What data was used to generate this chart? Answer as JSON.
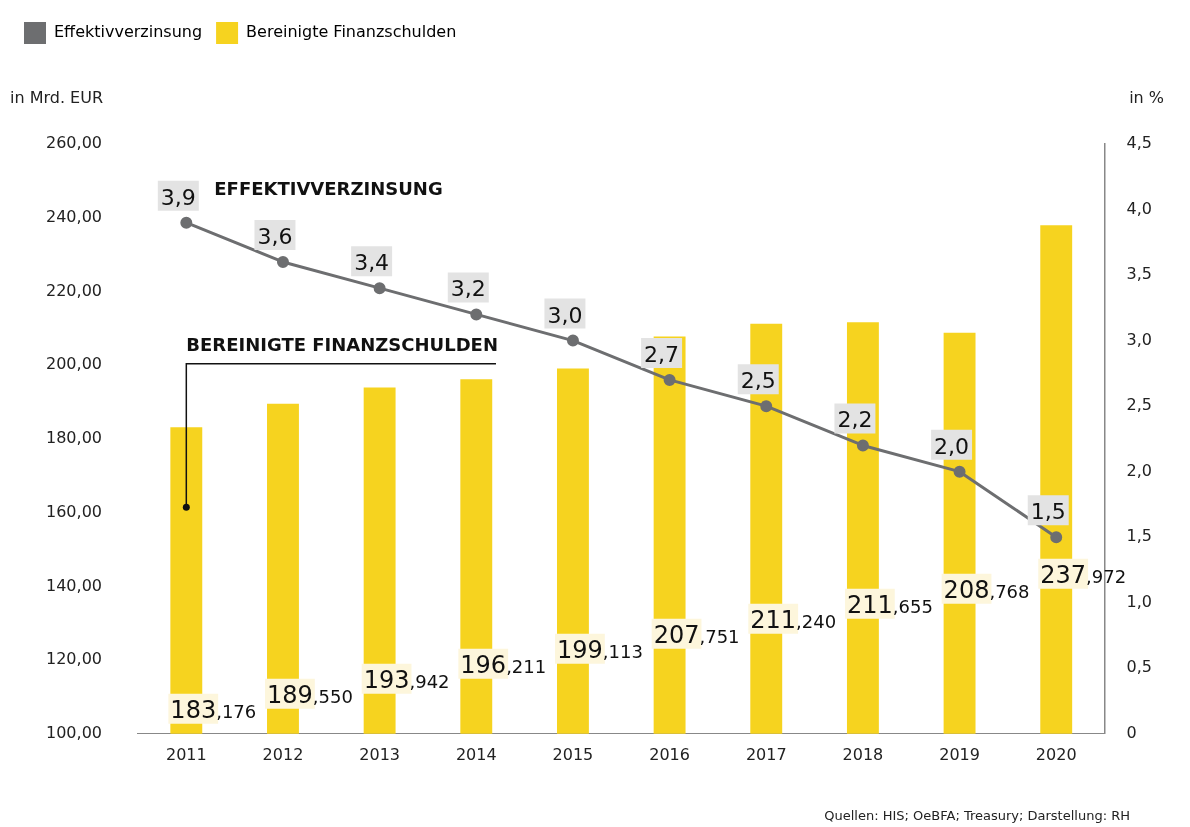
{
  "chart_data": {
    "type": "bar",
    "categories": [
      "2011",
      "2012",
      "2013",
      "2014",
      "2015",
      "2016",
      "2017",
      "2018",
      "2019",
      "2020"
    ],
    "series": [
      {
        "name": "Effektivverzinsung",
        "type": "line",
        "axis": "y2",
        "color": "#6d6e70",
        "values": [
          3.9,
          3.6,
          3.4,
          3.2,
          3.0,
          2.7,
          2.5,
          2.2,
          2.0,
          1.5
        ],
        "value_labels": [
          "3,9",
          "3,6",
          "3,4",
          "3,2",
          "3,0",
          "2,7",
          "2,5",
          "2,2",
          "2,0",
          "1,5"
        ]
      },
      {
        "name": "Bereinigte Finanzschulden",
        "color": "#f6d31f",
        "values": [
          183.176,
          189.55,
          193.942,
          196.211,
          199.113,
          207.751,
          211.24,
          211.655,
          208.768,
          237.972
        ],
        "value_labels": [
          "183,176",
          "189,550",
          "193,942",
          "196,211",
          "199,113",
          "207,751",
          "211,240",
          "211,655",
          "208,768",
          "237,972"
        ]
      }
    ],
    "ylabel": "in Mrd. EUR",
    "y2label": "in %",
    "ylim": [
      100,
      260
    ],
    "yticks": [
      {
        "value": 100,
        "label": "100,00"
      },
      {
        "value": 120,
        "label": "120,00"
      },
      {
        "value": 140,
        "label": "140,00"
      },
      {
        "value": 160,
        "label": "160,00"
      },
      {
        "value": 180,
        "label": "180,00"
      },
      {
        "value": 200,
        "label": "200,00"
      },
      {
        "value": 220,
        "label": "220,00"
      },
      {
        "value": 240,
        "label": "240,00"
      },
      {
        "value": 260,
        "label": "260,00"
      }
    ],
    "y2lim": [
      0,
      4.5
    ],
    "y2ticks": [
      0,
      {
        "value": 0.5,
        "label": "0,5"
      },
      {
        "value": 1,
        "label": "1,0"
      },
      {
        "value": 1.5,
        "label": "1,5"
      },
      {
        "value": 2,
        "label": "2,0"
      },
      {
        "value": 2.5,
        "label": "2,5"
      },
      {
        "value": 3,
        "label": "3,0"
      },
      {
        "value": 3.5,
        "label": "3,5"
      },
      {
        "value": 4,
        "label": "4,0"
      },
      {
        "value": 4.5,
        "label": "4,5"
      }
    ],
    "annotations": [
      "EFFEKTIVVERZINSUNG",
      "BEREINIGTE FINANZSCHULDEN",
      "Quellen: HIS; OeBFA; Treasury; Darstellung: RH"
    ],
    "legend": "top left",
    "grid": false,
    "marker": "circle",
    "line_style": "solid"
  }
}
